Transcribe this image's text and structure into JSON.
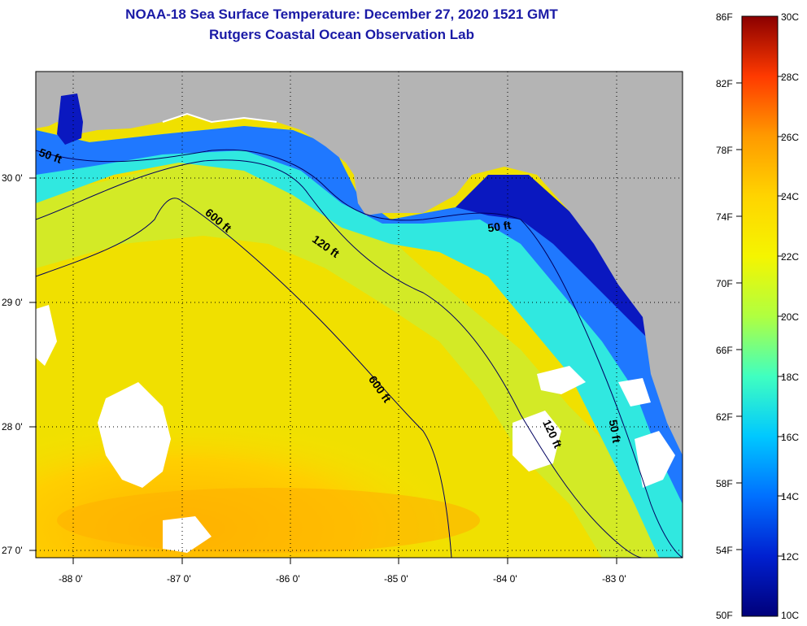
{
  "title": "NOAA-18 Sea Surface Temperature:  December 27, 2020 1521 GMT",
  "subtitle": "Rutgers Coastal Ocean Observation Lab",
  "map": {
    "lon_ticks": [
      "-88 0'",
      "-87 0'",
      "-86 0'",
      "-85 0'",
      "-84 0'",
      "-83 0'"
    ],
    "lat_ticks": [
      "30 0'",
      "29 0'",
      "28 0'",
      "27 0'"
    ],
    "contour_labels": [
      "50 ft",
      "600 ft",
      "120 ft",
      "50 ft",
      "600 ft",
      "120 ft",
      "50 ft"
    ],
    "land_color": "#b4b4b4",
    "cloud_color": "#ffffff"
  },
  "colorbar": {
    "fahrenheit_labels": [
      "86F",
      "82F",
      "78F",
      "74F",
      "70F",
      "66F",
      "62F",
      "58F",
      "54F",
      "50F"
    ],
    "celsius_labels": [
      "30C",
      "28C",
      "26C",
      "24C",
      "22C",
      "20C",
      "18C",
      "16C",
      "14C",
      "12C",
      "10C"
    ],
    "colors": [
      "#8b0000",
      "#e60000",
      "#ff5a00",
      "#ff9a00",
      "#ffd400",
      "#f5f500",
      "#b0ff40",
      "#40ffc0",
      "#00c8ff",
      "#0070ff",
      "#0020d0",
      "#00007a"
    ]
  }
}
